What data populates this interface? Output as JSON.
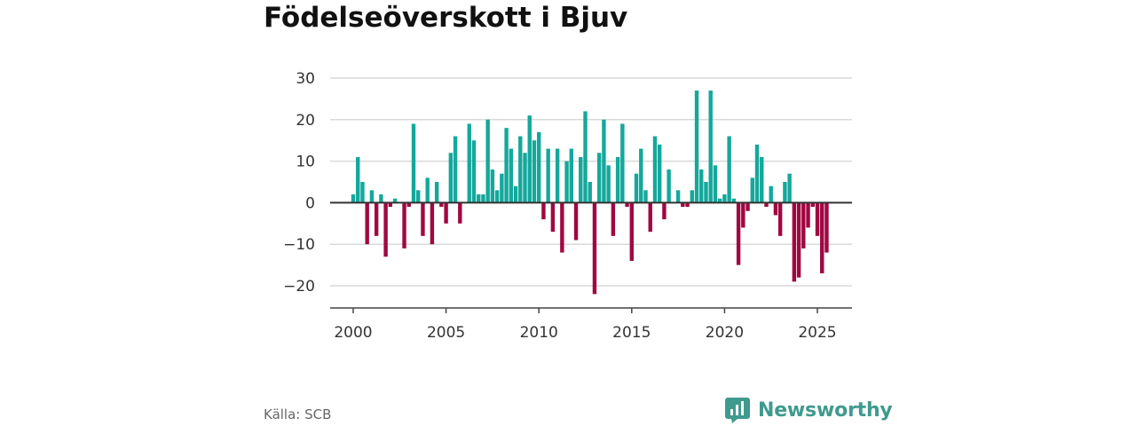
{
  "header": {
    "title": "Födelseöverskott i Bjuv"
  },
  "footer": {
    "source": "Källa: SCB",
    "brand": "Newsworthy"
  },
  "colors": {
    "positive": "#14a89b",
    "negative": "#a00741",
    "brand": "#3f9a8e"
  },
  "chart_data": {
    "type": "bar",
    "title": "Födelseöverskott i Bjuv",
    "xlabel": "",
    "ylabel": "",
    "ylim": [
      -25,
      30
    ],
    "yticks": [
      -20,
      -10,
      0,
      10,
      20,
      30
    ],
    "xticks": [
      2000,
      2005,
      2010,
      2015,
      2020,
      2025
    ],
    "xlim": [
      1998.8,
      2027.0
    ],
    "grid": true,
    "legend": "none",
    "x_unit": "quarter",
    "start_year": 2000,
    "values": [
      2,
      11,
      5,
      -10,
      3,
      -8,
      2,
      -13,
      -1,
      1,
      0,
      -11,
      -1,
      19,
      3,
      -8,
      6,
      -10,
      5,
      -1,
      -5,
      12,
      16,
      -5,
      0,
      19,
      15,
      2,
      2,
      20,
      8,
      3,
      7,
      18,
      13,
      4,
      16,
      12,
      21,
      15,
      17,
      -4,
      13,
      -7,
      13,
      -12,
      10,
      13,
      -9,
      11,
      22,
      5,
      -22,
      12,
      20,
      9,
      -8,
      11,
      19,
      -1,
      -14,
      7,
      13,
      3,
      -7,
      16,
      14,
      -4,
      8,
      0,
      3,
      -1,
      -1,
      3,
      27,
      8,
      5,
      27,
      9,
      1,
      2,
      16,
      1,
      -15,
      -6,
      -2,
      6,
      14,
      11,
      -1,
      4,
      -3,
      -8,
      5,
      7,
      -19,
      -18,
      -11,
      -6,
      -1,
      -8,
      -17,
      -12
    ]
  }
}
